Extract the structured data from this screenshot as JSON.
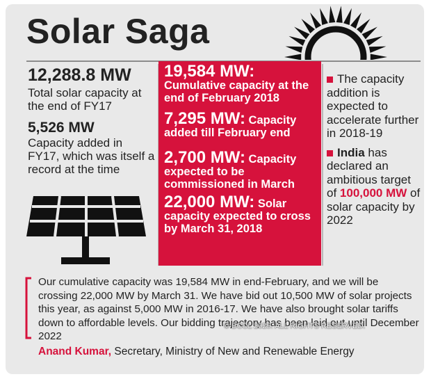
{
  "title": "Solar Saga",
  "left": {
    "stat1": {
      "figure": "12,288.8 MW",
      "text": "Total solar capacity at the end of FY17"
    },
    "stat2": {
      "figure": "5,526 MW",
      "text": "Capacity added in FY17, which was itself a record at the time"
    }
  },
  "center": [
    {
      "figure": "19,584 MW:",
      "text": "Cumulative capacity at the end of February 2018"
    },
    {
      "figure": "7,295 MW:",
      "text": "Capacity added till February end"
    },
    {
      "figure": "2,700 MW:",
      "text": "Capacity expected to be commissioned in March"
    },
    {
      "figure": "22,000 MW:",
      "text": "Solar capacity expected to cross by March 31, 2018"
    }
  ],
  "right": {
    "bullet1": "The capacity addition is expected to accelerate further in 2018-19",
    "bullet2": {
      "lead": "India",
      "text1": "has declared an ambitious target of",
      "highlight": "100,000 MW",
      "text2": "of solar capacity by 2022"
    }
  },
  "quote": {
    "text": "Our cumulative capacity was 19,584 MW in end-February, and we will be crossing 22,000 MW by March 31. We have bid out 10,500 MW of solar projects this year, as against 5,000 MW in 2016-17. We have also brought solar tariffs down to affordable levels. Our bidding trajectory has been laid out until December 2022",
    "author": "Anand Kumar,",
    "role": "Secretary, Ministry of New and Renewable Energy"
  },
  "watermark": "© BCCL 2025. ALL RIGHTS RESERVED."
}
